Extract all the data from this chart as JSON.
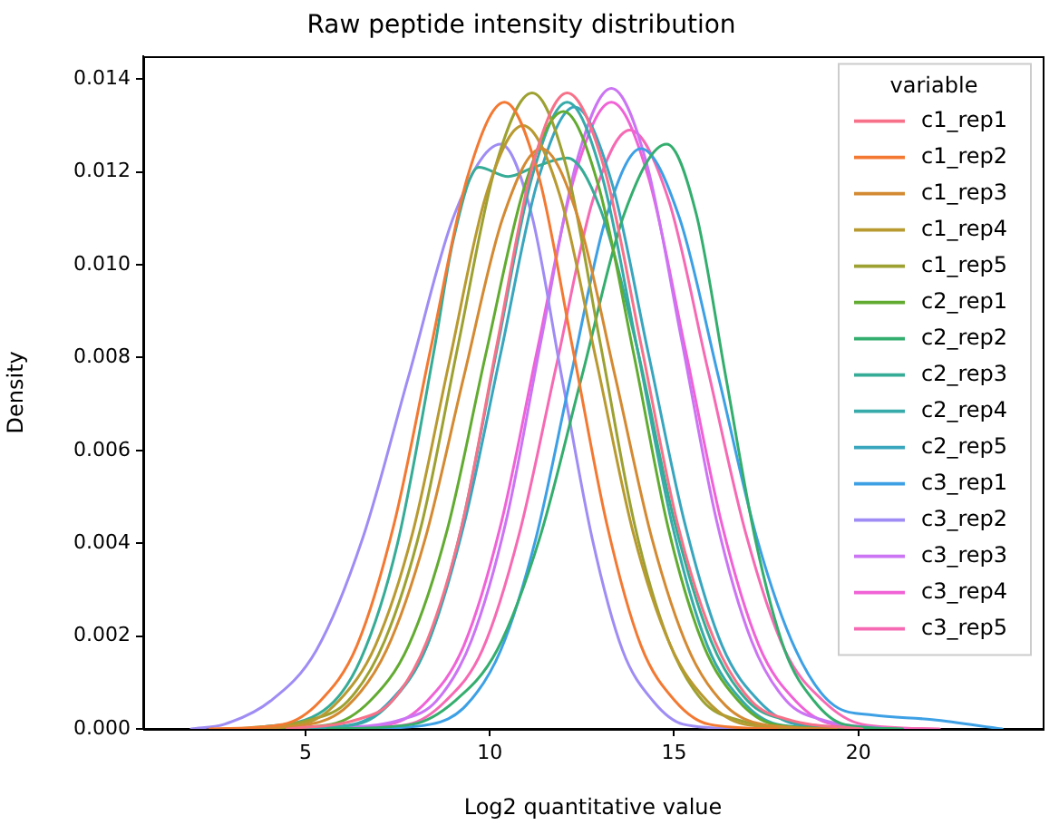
{
  "chart_data": {
    "type": "line",
    "title": "Raw peptide intensity distribution",
    "xlabel": "Log2 quantitative value",
    "ylabel": "Density",
    "legend_title": "variable",
    "legend": "top right",
    "grid": false,
    "marker": "none",
    "line_style": "solid",
    "xlim": [
      0.6,
      25.0
    ],
    "xticks": [
      5,
      10,
      15,
      20
    ],
    "ylim": [
      0,
      0.0145
    ],
    "yticks": [
      {
        "value": 0,
        "label": "0.000"
      },
      {
        "value": 0.002,
        "label": "0.002"
      },
      {
        "value": 0.004,
        "label": "0.004"
      },
      {
        "value": 0.006,
        "label": "0.006"
      },
      {
        "value": 0.008,
        "label": "0.008"
      },
      {
        "value": 0.01,
        "label": "0.010"
      },
      {
        "value": 0.012,
        "label": "0.012"
      },
      {
        "value": 0.014,
        "label": "0.014"
      }
    ],
    "series": [
      {
        "name": "c1_rep1",
        "color": "#f77189",
        "x": [
          4.5,
          6.4,
          7.35,
          8.3,
          9.25,
          10.2,
          11.15,
          12.1,
          13.1,
          14.1,
          15.1,
          16.1,
          17.1,
          18.1,
          20.1
        ],
        "values": [
          0,
          0.0002,
          0.0006,
          0.0019,
          0.0044,
          0.0083,
          0.0121,
          0.0137,
          0.0121,
          0.0083,
          0.0044,
          0.0019,
          0.0006,
          0.0002,
          0
        ]
      },
      {
        "name": "c1_rep2",
        "color": "#f37932",
        "x": [
          2.4,
          4.4,
          5.4,
          6.4,
          7.4,
          8.4,
          9.4,
          10.4,
          11.33,
          12.25,
          13.18,
          14.1,
          15.03,
          15.95,
          17.8
        ],
        "values": [
          0,
          0.0001,
          0.0006,
          0.0018,
          0.0044,
          0.0082,
          0.0119,
          0.0135,
          0.0119,
          0.0082,
          0.0044,
          0.0018,
          0.0006,
          0.0001,
          0
        ]
      },
      {
        "name": "c1_rep3",
        "color": "#d48a32",
        "x": [
          3.0,
          5.1,
          6.15,
          7.2,
          8.25,
          9.3,
          10.35,
          11.4,
          12.4,
          13.4,
          14.4,
          15.4,
          16.4,
          17.4,
          19.4
        ],
        "values": [
          0,
          0.0001,
          0.0005,
          0.0017,
          0.0041,
          0.0076,
          0.011,
          0.0125,
          0.011,
          0.0076,
          0.0041,
          0.0017,
          0.0005,
          0.0001,
          0
        ]
      },
      {
        "name": "c1_rep4",
        "color": "#b89a31",
        "x": [
          2.9,
          4.9,
          5.9,
          6.9,
          7.9,
          8.9,
          9.9,
          10.9,
          11.9,
          12.9,
          13.9,
          14.9,
          15.9,
          16.9,
          18.9
        ],
        "values": [
          0,
          0.0001,
          0.0006,
          0.0018,
          0.0042,
          0.0079,
          0.0115,
          0.013,
          0.0115,
          0.0079,
          0.0042,
          0.0018,
          0.0006,
          0.0001,
          0
        ]
      },
      {
        "name": "c1_rep5",
        "color": "#9da131",
        "x": [
          3.15,
          5.15,
          6.15,
          7.15,
          8.15,
          9.15,
          10.15,
          11.15,
          12.08,
          13.0,
          13.93,
          14.85,
          15.78,
          16.7,
          18.55
        ],
        "values": [
          0,
          0.0002,
          0.0006,
          0.0019,
          0.0044,
          0.0083,
          0.0121,
          0.0137,
          0.0121,
          0.0083,
          0.0044,
          0.0019,
          0.0006,
          0.0002,
          0
        ]
      },
      {
        "name": "c2_rep1",
        "color": "#62ab31",
        "x": [
          3.6,
          5.7,
          6.75,
          7.8,
          8.85,
          9.9,
          10.95,
          12.0,
          12.95,
          13.9,
          14.85,
          15.8,
          16.75,
          17.7,
          19.6
        ],
        "values": [
          0,
          0.0001,
          0.0006,
          0.0018,
          0.0043,
          0.0081,
          0.0117,
          0.0133,
          0.0117,
          0.0081,
          0.0043,
          0.0018,
          0.0006,
          0.0001,
          0
        ]
      },
      {
        "name": "c2_rep2",
        "color": "#34ae6e",
        "x": [
          5.6,
          7.9,
          9.05,
          10.2,
          11.35,
          12.5,
          13.65,
          14.8,
          15.6,
          16.4,
          17.2,
          18.0,
          18.8,
          19.6,
          21.2
        ],
        "values": [
          0,
          0.0001,
          0.0006,
          0.0017,
          0.0041,
          0.0076,
          0.0111,
          0.0126,
          0.0111,
          0.0076,
          0.0041,
          0.0017,
          0.0006,
          0.0001,
          0
        ]
      },
      {
        "name": "c2_rep3",
        "color": "#36ac97",
        "x": [
          3.5,
          5.5,
          6.5,
          7.5,
          8.5,
          9.0,
          9.7,
          10.5,
          11.2,
          12.1,
          13.0,
          14.0,
          15.0,
          16.0,
          17.0,
          18.0,
          20.0
        ],
        "values": [
          0,
          0.0004,
          0.0015,
          0.004,
          0.0082,
          0.0105,
          0.0121,
          0.0119,
          0.0121,
          0.0123,
          0.0112,
          0.0082,
          0.0045,
          0.0019,
          0.0006,
          0.0002,
          0
        ]
      },
      {
        "name": "c2_rep4",
        "color": "#37aaaa",
        "x": [
          4.5,
          6.4,
          7.35,
          8.3,
          9.25,
          10.2,
          11.15,
          12.1,
          13.05,
          14.0,
          14.95,
          15.9,
          16.85,
          17.8,
          19.7
        ],
        "values": [
          0,
          0.0001,
          0.0006,
          0.0018,
          0.0044,
          0.0082,
          0.0119,
          0.0135,
          0.0119,
          0.0082,
          0.0044,
          0.0018,
          0.0006,
          0.0001,
          0
        ]
      },
      {
        "name": "c2_rep5",
        "color": "#39a6be",
        "x": [
          4.3,
          6.3,
          7.3,
          8.3,
          9.3,
          10.3,
          11.3,
          12.3,
          13.3,
          14.3,
          15.3,
          16.3,
          17.3,
          18.3,
          20.3
        ],
        "values": [
          0,
          0.0001,
          0.0006,
          0.0018,
          0.0044,
          0.0081,
          0.0118,
          0.0134,
          0.0118,
          0.0081,
          0.0044,
          0.0018,
          0.0006,
          0.0001,
          0
        ]
      },
      {
        "name": "c3_rep1",
        "color": "#3da0e5",
        "x": [
          6.5,
          8.4,
          9.35,
          10.3,
          11.25,
          12.2,
          13.15,
          14.1,
          15.15,
          16.2,
          17.25,
          18.3,
          19.35,
          20.4,
          22.0,
          23.9
        ],
        "values": [
          0,
          0.0001,
          0.0005,
          0.0017,
          0.0041,
          0.0076,
          0.011,
          0.0125,
          0.011,
          0.0076,
          0.0041,
          0.0017,
          0.0005,
          0.0003,
          0.0002,
          0
        ]
      },
      {
        "name": "c3_rep2",
        "color": "#9f8cf4",
        "x": [
          1.9,
          2.8,
          4.05,
          5.3,
          6.55,
          7.8,
          9.05,
          10.3,
          11.13,
          11.95,
          12.78,
          13.6,
          14.43,
          15.25,
          16.9
        ],
        "values": [
          0,
          0.0001,
          0.0006,
          0.0017,
          0.0041,
          0.0076,
          0.0111,
          0.0126,
          0.0111,
          0.0076,
          0.0041,
          0.0017,
          0.0006,
          0.0001,
          0
        ]
      },
      {
        "name": "c3_rep3",
        "color": "#cb74f4",
        "x": [
          5.7,
          7.6,
          8.55,
          9.5,
          10.45,
          11.4,
          12.35,
          13.3,
          14.25,
          15.2,
          16.15,
          17.1,
          18.05,
          19.0,
          20.9
        ],
        "values": [
          0,
          0.0002,
          0.0006,
          0.0019,
          0.0045,
          0.0084,
          0.0122,
          0.0138,
          0.0122,
          0.0084,
          0.0045,
          0.0019,
          0.0006,
          0.0002,
          0
        ]
      },
      {
        "name": "c3_rep4",
        "color": "#f062d6",
        "x": [
          5.3,
          7.3,
          8.3,
          9.3,
          10.3,
          11.3,
          12.3,
          13.3,
          14.3,
          15.3,
          16.3,
          17.3,
          18.3,
          19.3,
          21.3
        ],
        "values": [
          0,
          0.0001,
          0.0006,
          0.0018,
          0.0044,
          0.0082,
          0.0119,
          0.0135,
          0.0119,
          0.0082,
          0.0044,
          0.0018,
          0.0006,
          0.0001,
          0
        ]
      },
      {
        "name": "c3_rep5",
        "color": "#f66ab4",
        "x": [
          5.8,
          7.8,
          8.8,
          9.8,
          10.8,
          11.8,
          12.8,
          13.8,
          14.85,
          15.9,
          16.95,
          18.0,
          19.05,
          20.1,
          22.2
        ],
        "values": [
          0,
          0.0001,
          0.0006,
          0.0017,
          0.0042,
          0.0078,
          0.0114,
          0.0129,
          0.0114,
          0.0078,
          0.0042,
          0.0017,
          0.0006,
          0.0001,
          0
        ]
      }
    ]
  }
}
